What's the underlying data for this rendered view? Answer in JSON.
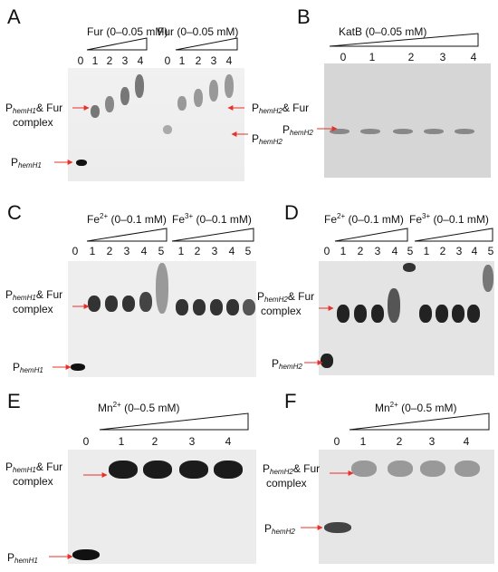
{
  "panels": {
    "A": {
      "letter": "A",
      "title_left": "Fur (0–0.05 mM)",
      "title_right": "Fur (0–0.05 mM)",
      "lanes_left": [
        "0",
        "1",
        "2",
        "3",
        "4"
      ],
      "lanes_right": [
        "0",
        "1",
        "2",
        "3",
        "4"
      ],
      "label_complex_p": "P",
      "label_complex_sub": "hemH1",
      "label_complex_suffix": "& Fur",
      "label_complex_line2": "complex",
      "label_free_p": "P",
      "label_free_sub": "hemH1",
      "label_right_complex_p": "P",
      "label_right_complex_sub": "hemH2",
      "label_right_complex_suffix": "& Fur",
      "label_right_free_p": "P",
      "label_right_free_sub": "hemH2"
    },
    "B": {
      "letter": "B",
      "title": "KatB (0–0.05 mM)",
      "lanes": [
        "0",
        "1",
        "2",
        "3",
        "4"
      ],
      "label_p": "P",
      "label_sub": "hemH2"
    },
    "C": {
      "letter": "C",
      "fe2_base": "Fe",
      "fe2_sup": "2+",
      "fe2_range": "(0–0.1 mM)",
      "fe3_base": "Fe",
      "fe3_sup": "3+",
      "fe3_range": "(0–0.1 mM)",
      "lanes": [
        "0",
        "1",
        "2",
        "3",
        "4",
        "5",
        "1",
        "2",
        "3",
        "4",
        "5"
      ],
      "label_complex_p": "P",
      "label_complex_sub": "hemH1",
      "label_complex_suffix": "& Fur",
      "label_complex_line2": "complex",
      "label_free_p": "P",
      "label_free_sub": "hemH1"
    },
    "D": {
      "letter": "D",
      "fe2_base": "Fe",
      "fe2_sup": "2+",
      "fe2_range": "(0–0.1 mM)",
      "fe3_base": "Fe",
      "fe3_sup": "3+",
      "fe3_range": "(0–0.1 mM)",
      "lanes": [
        "0",
        "1",
        "2",
        "3",
        "4",
        "5",
        "1",
        "2",
        "3",
        "4",
        "5"
      ],
      "label_complex_p": "P",
      "label_complex_sub": "hemH2",
      "label_complex_suffix": "& Fur",
      "label_complex_line2": "complex",
      "label_free_p": "P",
      "label_free_sub": "hemH2"
    },
    "E": {
      "letter": "E",
      "mn_base": "Mn",
      "mn_sup": "2+",
      "mn_range": "(0–0.5 mM)",
      "lanes": [
        "0",
        "1",
        "2",
        "3",
        "4"
      ],
      "label_complex_p": "P",
      "label_complex_sub": "hemH1",
      "label_complex_suffix": "& Fur",
      "label_complex_line2": "complex",
      "label_free_p": "P",
      "label_free_sub": "hemH1"
    },
    "F": {
      "letter": "F",
      "mn_base": "Mn",
      "mn_sup": "2+",
      "mn_range": "(0–0.5 mM)",
      "lanes": [
        "0",
        "1",
        "2",
        "3",
        "4"
      ],
      "label_complex_p": "P",
      "label_complex_sub": "hemH2",
      "label_complex_suffix": "& Fur",
      "label_complex_line2": "complex",
      "label_free_p": "P",
      "label_free_sub": "hemH2"
    }
  },
  "colors": {
    "arrow": "#e8302a",
    "band": "#1a1a1a",
    "gel_light": "#ececec",
    "gel_mid": "#dcdcdc"
  }
}
